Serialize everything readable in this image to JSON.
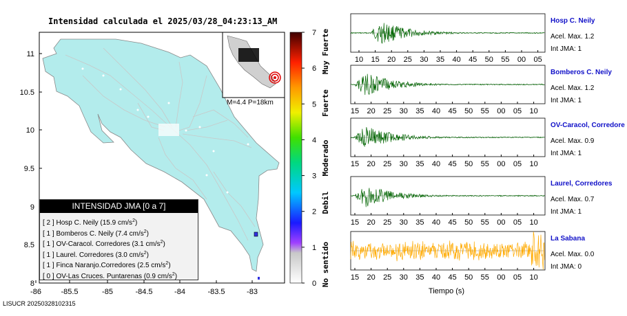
{
  "title": "Intensidad calculada el 2025/03/28_04:23:13_AM",
  "footer": "LISUCR 20250328102315",
  "map": {
    "x_ticks": [
      "-86",
      "-85.5",
      "-85",
      "-84.5",
      "-84",
      "-83.5",
      "-83"
    ],
    "y_ticks": [
      "11",
      "10.5",
      "10",
      "9.5",
      "9",
      "8.5",
      "8"
    ],
    "inset_label": "M=4.4 P=18km",
    "land_color": "#b3ecec",
    "station_color": "#3030e0"
  },
  "colorbar": {
    "ticks": [
      "0",
      "1",
      "2",
      "3",
      "4",
      "5",
      "6",
      "7"
    ],
    "labels": [
      "No sentido",
      "Debil",
      "Moderado",
      "Fuerte",
      "Muy Fuerte"
    ]
  },
  "legend": {
    "header": "INTENSIDAD JMA [0 a 7]",
    "rows": [
      {
        "level": "[ 2 ]",
        "text": "Hosp C. Neily (15.9 cm/s",
        "sup": "2",
        "tail": ")"
      },
      {
        "level": "[ 1 ]",
        "text": "Bomberos C. Neily (7.4 cm/s",
        "sup": "2",
        "tail": ")"
      },
      {
        "level": "[ 1 ]",
        "text": "OV-Caracol. Corredores (3.1 cm/s",
        "sup": "2",
        "tail": ")"
      },
      {
        "level": "[ 1 ]",
        "text": "Laurel. Corredores (3.0 cm/s",
        "sup": "2",
        "tail": ")"
      },
      {
        "level": "[ 1 ]",
        "text": "Finca Naranjo.Corredores (2.5 cm/s",
        "sup": "2",
        "tail": ")"
      },
      {
        "level": "[ 0 ]",
        "text": "OV-Las Cruces. Puntarenas (0.9 cm/s",
        "sup": "2",
        "tail": ")"
      }
    ]
  },
  "waveforms": {
    "xlabel": "Tiempo (s)",
    "panels": [
      {
        "name": "Hosp C. Neily",
        "acel": "Acel. Max. 1.2",
        "jma": "Int JMA: 1",
        "color": "#006400",
        "ticks": [
          "10",
          "15",
          "20",
          "25",
          "30",
          "35",
          "40",
          "45",
          "50",
          "55",
          "00",
          "05"
        ]
      },
      {
        "name": "Bomberos C. Neily",
        "acel": "Acel. Max. 1.2",
        "jma": "Int JMA: 1",
        "color": "#006400",
        "ticks": [
          "15",
          "20",
          "25",
          "30",
          "35",
          "40",
          "45",
          "50",
          "55",
          "00",
          "05",
          "10"
        ]
      },
      {
        "name": "OV-Caracol, Corredore",
        "acel": "Acel. Max. 0.9",
        "jma": "Int JMA: 1",
        "color": "#006400",
        "ticks": [
          "15",
          "20",
          "25",
          "30",
          "35",
          "40",
          "45",
          "50",
          "55",
          "00",
          "05",
          "10"
        ]
      },
      {
        "name": "Laurel, Corredores",
        "acel": "Acel. Max. 0.7",
        "jma": "Int JMA: 1",
        "color": "#006400",
        "ticks": [
          "15",
          "20",
          "25",
          "30",
          "35",
          "40",
          "45",
          "50",
          "55",
          "00",
          "05",
          "10"
        ]
      },
      {
        "name": "La Sabana",
        "acel": "Acel. Max. 0.0",
        "jma": "Int JMA: 0",
        "color": "#ffaa00",
        "ticks": [
          "15",
          "20",
          "25",
          "30",
          "35",
          "40",
          "45",
          "50",
          "55",
          "00",
          "05",
          "10"
        ]
      }
    ]
  },
  "chart_data": [
    {
      "type": "heatmap",
      "title": "Intensidad calculada el 2025/03/28_04:23:13_AM",
      "xlim": [
        -86,
        -82.6
      ],
      "ylim": [
        8,
        11.3
      ],
      "colorbar_range": [
        0,
        7
      ],
      "stations": [
        {
          "name": "Hosp C. Neily",
          "jma": 2,
          "pga_cm_s2": 15.9
        },
        {
          "name": "Bomberos C. Neily",
          "jma": 1,
          "pga_cm_s2": 7.4
        },
        {
          "name": "OV-Caracol. Corredores",
          "jma": 1,
          "pga_cm_s2": 3.1
        },
        {
          "name": "Laurel. Corredores",
          "jma": 1,
          "pga_cm_s2": 3.0
        },
        {
          "name": "Finca Naranjo.Corredores",
          "jma": 1,
          "pga_cm_s2": 2.5
        },
        {
          "name": "OV-Las Cruces. Puntarenas",
          "jma": 0,
          "pga_cm_s2": 0.9
        }
      ],
      "magnitude": 4.4,
      "depth_km": 18
    },
    {
      "type": "line",
      "xlabel": "Tiempo (s)",
      "series": [
        {
          "name": "Hosp C. Neily",
          "acel_max": 1.2,
          "jma": 1
        },
        {
          "name": "Bomberos C. Neily",
          "acel_max": 1.2,
          "jma": 1
        },
        {
          "name": "OV-Caracol, Corredore",
          "acel_max": 0.9,
          "jma": 1
        },
        {
          "name": "Laurel, Corredores",
          "acel_max": 0.7,
          "jma": 1
        },
        {
          "name": "La Sabana",
          "acel_max": 0.0,
          "jma": 0
        }
      ]
    }
  ]
}
